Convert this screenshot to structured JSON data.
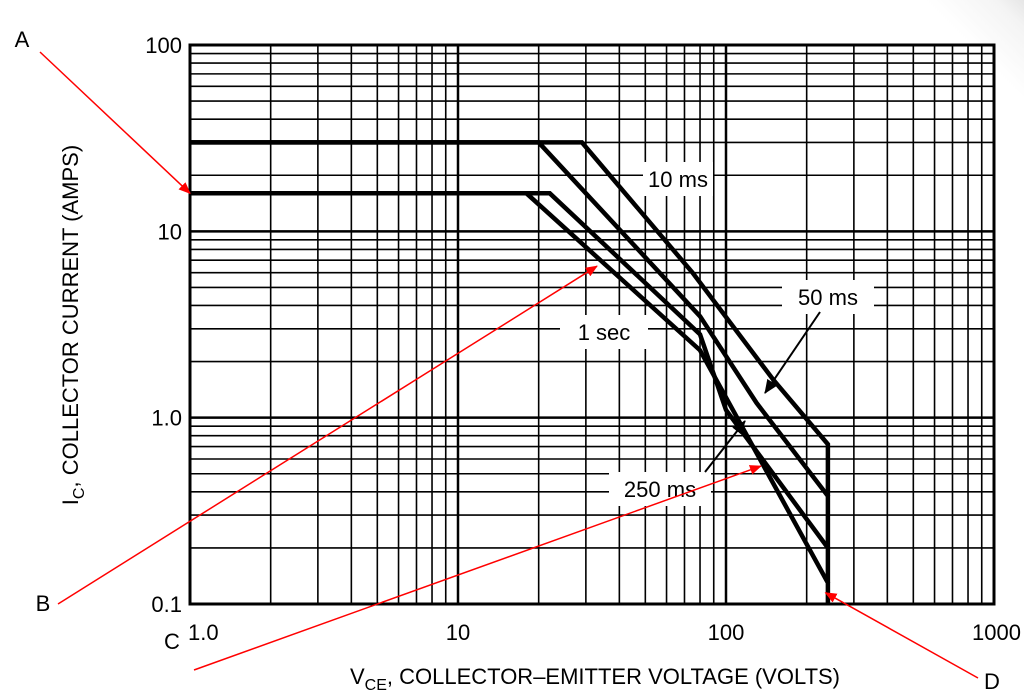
{
  "chart_data": {
    "type": "line",
    "x_scale": "log",
    "y_scale": "log",
    "xlim": [
      1,
      1000
    ],
    "ylim": [
      0.1,
      100
    ],
    "grid": true,
    "x_ticks": [
      "1.0",
      "10",
      "100",
      "1000"
    ],
    "y_ticks": [
      "100",
      "10",
      "1.0",
      "0.1"
    ],
    "xlabel": {
      "main": "V",
      "sub": "CE",
      "rest": ", COLLECTOR–EMITTER VOLTAGE (VOLTS)"
    },
    "ylabel": {
      "main": "I",
      "sub": "C",
      "rest": ", COLLECTOR CURRENT (AMPS)"
    },
    "series": [
      {
        "name": "10 ms",
        "x": [
          1,
          29,
          75,
          150,
          240,
          240
        ],
        "y": [
          30,
          30,
          6,
          1.6,
          0.72,
          0.38
        ]
      },
      {
        "name": "50 ms",
        "x": [
          1,
          20,
          80,
          130,
          240,
          240
        ],
        "y": [
          30,
          30,
          3.5,
          1.2,
          0.38,
          0.2
        ]
      },
      {
        "name": "250 ms",
        "x": [
          1,
          22,
          80,
          100,
          240,
          240
        ],
        "y": [
          16,
          16,
          2.8,
          1.1,
          0.2,
          0.13
        ]
      },
      {
        "name": "1 sec",
        "x": [
          1,
          18,
          80,
          240,
          240
        ],
        "y": [
          16,
          16,
          2.3,
          0.13,
          0.1
        ]
      }
    ],
    "curve_labels": [
      "10 ms",
      "50 ms",
      "1 sec",
      "250 ms"
    ],
    "annotations": [
      {
        "label": "A",
        "target": [
          1,
          16
        ]
      },
      {
        "label": "B",
        "target": [
          33,
          6.5
        ]
      },
      {
        "label": "C",
        "target": [
          135,
          0.55
        ]
      },
      {
        "label": "D",
        "target": [
          235,
          0.115
        ]
      }
    ],
    "colors": {
      "curve": "#000000",
      "grid": "#000000",
      "arrow": "#ff0000"
    }
  }
}
